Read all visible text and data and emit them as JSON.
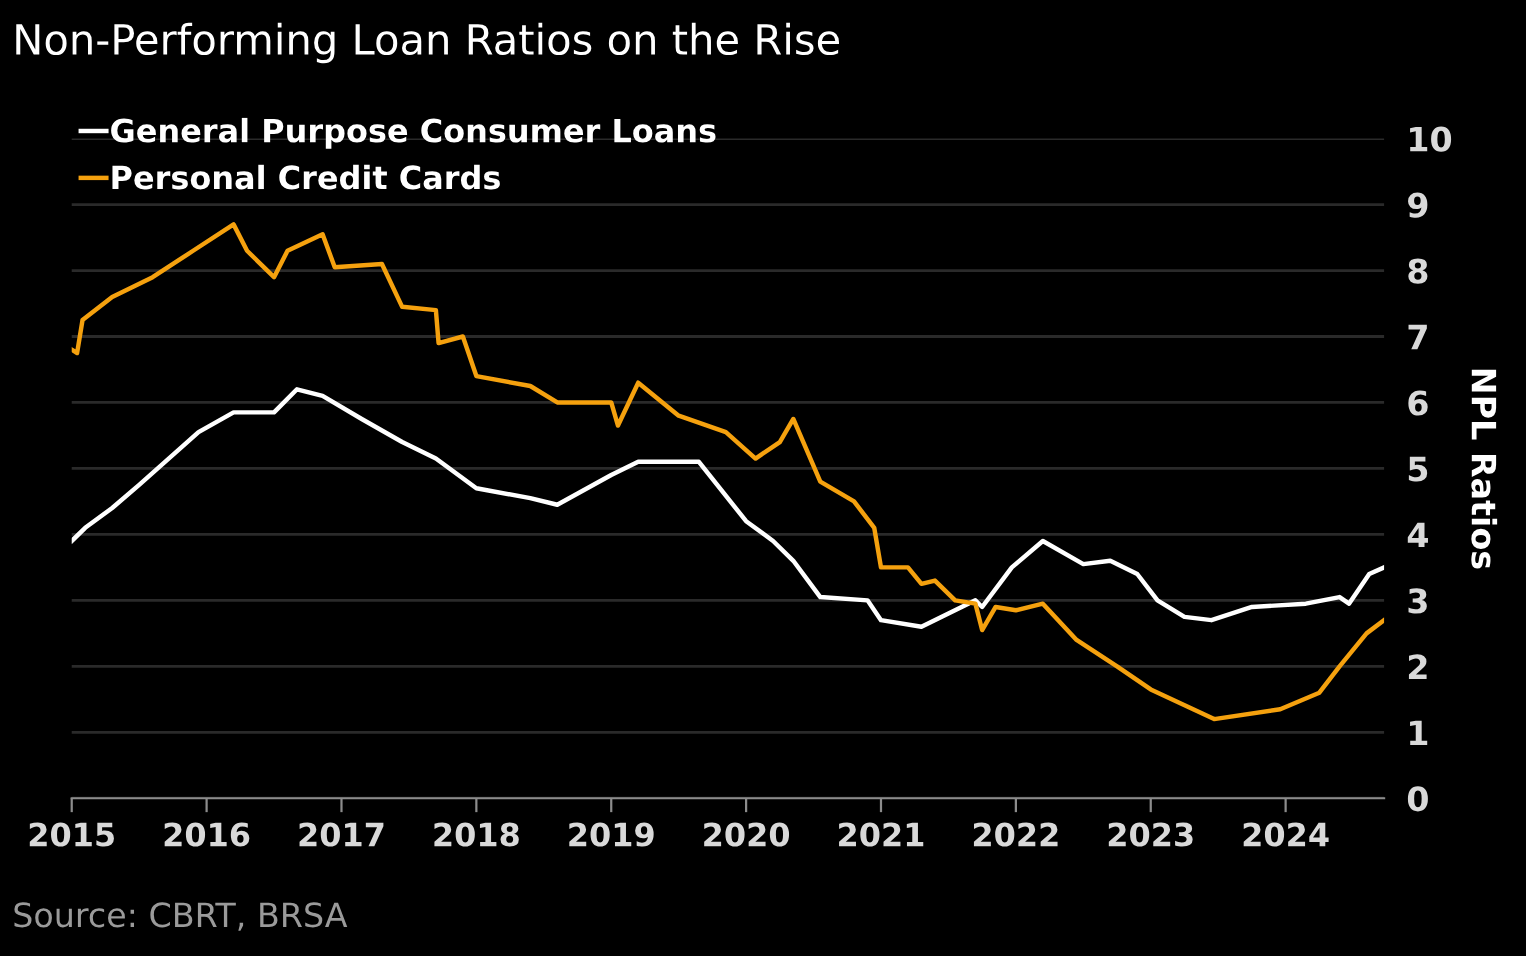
{
  "chart_data": {
    "type": "line",
    "title": "Non-Performing Loan Ratios on the Rise",
    "ylabel": "NPL Ratios",
    "annotations": [
      "Source: CBRT, BRSA"
    ],
    "series": [
      {
        "name": "General Purpose Consumer Loans",
        "color": "#ffffff",
        "x": [
          2015.0,
          2015.1,
          2015.3,
          2015.5,
          2015.94,
          2016.2,
          2016.5,
          2016.67,
          2016.86,
          2017.15,
          2017.45,
          2017.7,
          2018.0,
          2018.4,
          2018.6,
          2019.0,
          2019.2,
          2019.65,
          2020.0,
          2020.2,
          2020.35,
          2020.55,
          2020.9,
          2021.0,
          2021.3,
          2021.5,
          2021.7,
          2021.75,
          2021.97,
          2022.2,
          2022.5,
          2022.7,
          2022.9,
          2023.05,
          2023.25,
          2023.45,
          2023.75,
          2024.15,
          2024.4,
          2024.47,
          2024.62,
          2024.73
        ],
        "values": [
          3.9,
          4.1,
          4.4,
          4.75,
          5.55,
          5.85,
          5.85,
          6.2,
          6.1,
          5.75,
          5.4,
          5.15,
          4.7,
          4.55,
          4.45,
          4.9,
          5.1,
          5.1,
          4.2,
          3.9,
          3.6,
          3.05,
          3.0,
          2.7,
          2.6,
          2.8,
          3.0,
          2.9,
          3.5,
          3.9,
          3.55,
          3.6,
          3.4,
          3.0,
          2.75,
          2.7,
          2.9,
          2.95,
          3.05,
          2.95,
          3.4,
          3.5
        ]
      },
      {
        "name": "Personal Credit Cards",
        "color": "#f5a10e",
        "x": [
          2015.0,
          2015.04,
          2015.08,
          2015.3,
          2015.6,
          2015.9,
          2016.2,
          2016.3,
          2016.5,
          2016.6,
          2016.86,
          2016.95,
          2017.3,
          2017.45,
          2017.7,
          2017.72,
          2017.9,
          2018.0,
          2018.4,
          2018.6,
          2019.0,
          2019.05,
          2019.2,
          2019.5,
          2019.85,
          2020.07,
          2020.25,
          2020.35,
          2020.55,
          2020.8,
          2020.95,
          2021.0,
          2021.2,
          2021.3,
          2021.4,
          2021.55,
          2021.7,
          2021.75,
          2021.85,
          2022.0,
          2022.2,
          2022.45,
          2022.75,
          2023.0,
          2023.47,
          2023.96,
          2024.25,
          2024.4,
          2024.6,
          2024.73
        ],
        "values": [
          6.8,
          6.75,
          7.25,
          7.6,
          7.9,
          8.3,
          8.7,
          8.3,
          7.9,
          8.3,
          8.55,
          8.05,
          8.1,
          7.45,
          7.4,
          6.9,
          7.0,
          6.4,
          6.25,
          6.0,
          6.0,
          5.65,
          6.3,
          5.8,
          5.55,
          5.15,
          5.4,
          5.75,
          4.8,
          4.5,
          4.1,
          3.5,
          3.5,
          3.25,
          3.3,
          3.0,
          2.95,
          2.55,
          2.9,
          2.85,
          2.95,
          2.4,
          2.0,
          1.65,
          1.2,
          1.35,
          1.6,
          2.0,
          2.5,
          2.7
        ]
      }
    ],
    "xlim": [
      2015,
      2024.73
    ],
    "xticks": [
      2015,
      2016,
      2017,
      2018,
      2019,
      2020,
      2021,
      2022,
      2023,
      2024
    ],
    "ylim": [
      0,
      10
    ],
    "yticks": [
      0,
      1,
      2,
      3,
      4,
      5,
      6,
      7,
      8,
      9,
      10
    ],
    "grid": "y",
    "legend": "top left"
  }
}
